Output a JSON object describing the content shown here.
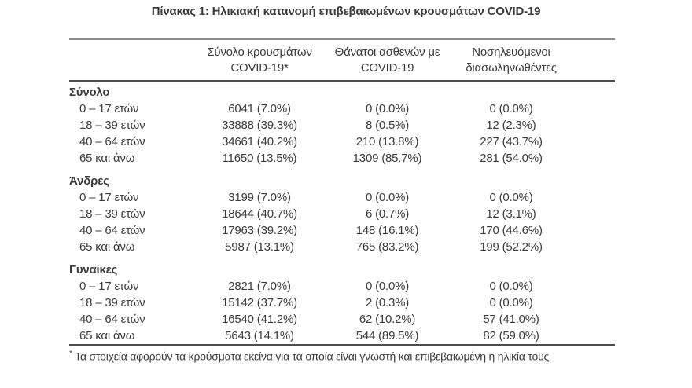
{
  "title": "Πίνακας 1: Ηλικιακή κατανομή επιβεβαιωμένων κρουσμάτων COVID-19",
  "table": {
    "headers": [
      {
        "line1": "Σύνολο κρουσμάτων",
        "line2": "COVID-19*"
      },
      {
        "line1": "Θάνατοι ασθενών με",
        "line2": "COVID-19"
      },
      {
        "line1": "Νοσηλευόμενοι",
        "line2": "διασωληνωθέντες"
      }
    ],
    "sections": [
      {
        "label": "Σύνολο",
        "rows": [
          {
            "age": "0 – 17 ετών",
            "cases": "6041 (7.0%)",
            "deaths": "0 (0.0%)",
            "intubated": "0 (0.0%)"
          },
          {
            "age": "18 – 39 ετών",
            "cases": "33888 (39.3%)",
            "deaths": "8 (0.5%)",
            "intubated": "12 (2.3%)"
          },
          {
            "age": "40 – 64 ετών",
            "cases": "34661 (40.2%)",
            "deaths": "210 (13.8%)",
            "intubated": "227 (43.7%)"
          },
          {
            "age": "65 και άνω",
            "cases": "11650 (13.5%)",
            "deaths": "1309 (85.7%)",
            "intubated": "281 (54.0%)"
          }
        ]
      },
      {
        "label": "Άνδρες",
        "rows": [
          {
            "age": "0 – 17 ετών",
            "cases": "3199 (7.0%)",
            "deaths": "0 (0.0%)",
            "intubated": "0 (0.0%)"
          },
          {
            "age": "18 – 39 ετών",
            "cases": "18644 (40.7%)",
            "deaths": "6 (0.7%)",
            "intubated": "12 (3.1%)"
          },
          {
            "age": "40 – 64 ετών",
            "cases": "17963 (39.2%)",
            "deaths": "148 (16.1%)",
            "intubated": "170 (44.6%)"
          },
          {
            "age": "65 και άνω",
            "cases": "5987 (13.1%)",
            "deaths": "765 (83.2%)",
            "intubated": "199 (52.2%)"
          }
        ]
      },
      {
        "label": "Γυναίκες",
        "rows": [
          {
            "age": "0 – 17 ετών",
            "cases": "2821 (7.0%)",
            "deaths": "0 (0.0%)",
            "intubated": "0 (0.0%)"
          },
          {
            "age": "18 – 39 ετών",
            "cases": "15142 (37.7%)",
            "deaths": "2 (0.3%)",
            "intubated": "0 (0.0%)"
          },
          {
            "age": "40 – 64 ετών",
            "cases": "16540 (41.2%)",
            "deaths": "62 (10.2%)",
            "intubated": "57 (41.0%)"
          },
          {
            "age": "65 και άνω",
            "cases": "5643 (14.1%)",
            "deaths": "544 (89.5%)",
            "intubated": "82 (59.0%)"
          }
        ]
      }
    ]
  },
  "footnote": {
    "marker": "*",
    "text": "Τα στοιχεία αφορούν τα κρούσματα εκείνα για τα οποία είναι γνωστή και επιβεβαιωμένη η ηλικία τους"
  },
  "colors": {
    "background": "#ffffff",
    "text": "#3c3c3c",
    "rule_light": "#8c8c8c",
    "rule_dark": "#4d4d4d"
  }
}
